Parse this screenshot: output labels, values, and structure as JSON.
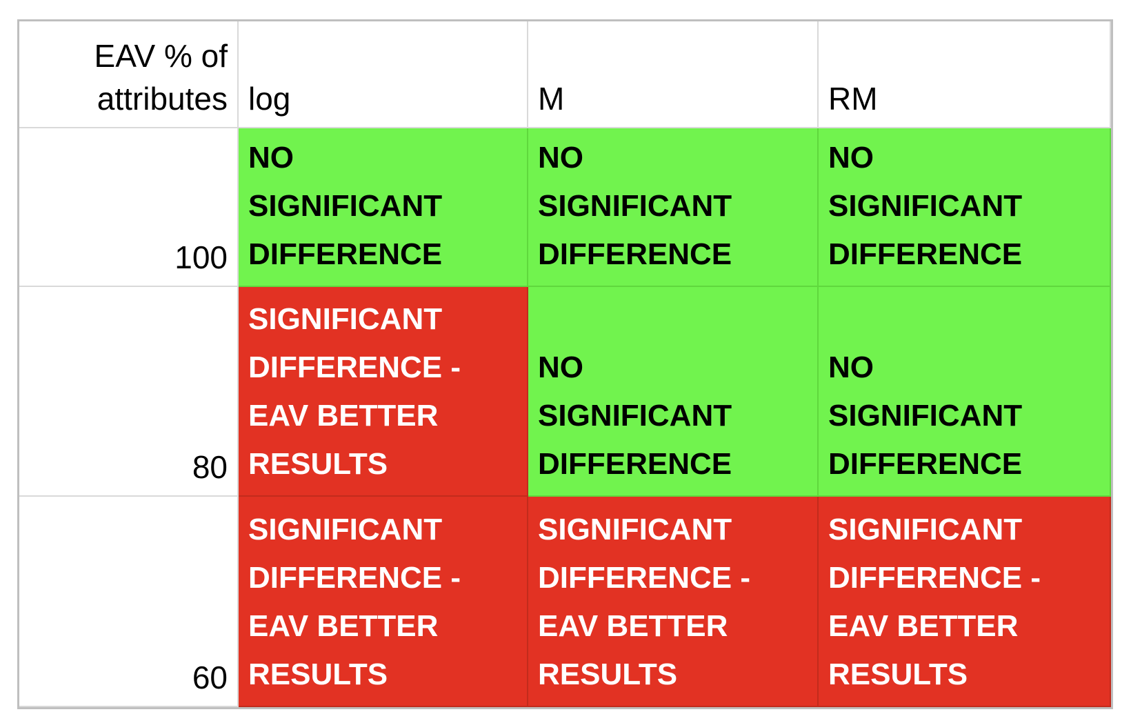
{
  "colors": {
    "no_significant_difference_green": "#71F34E",
    "significant_difference_red": "#E23223",
    "green_cell_border": "#5FD83D",
    "red_cell_border": "#C22B1C",
    "white_cell_gridline": "#D9D9D9",
    "table_outer_border": "#BFBFBF",
    "dark_text": "#000000",
    "light_text": "#FFFFFF"
  },
  "table": {
    "corner_header": "EAV % of\nattributes",
    "column_headers": [
      "log",
      "M",
      "RM"
    ],
    "rows": [
      {
        "label": "100",
        "cells": [
          {
            "status": "green",
            "text": "NO\nSIGNIFICANT\nDIFFERENCE"
          },
          {
            "status": "green",
            "text": "NO\nSIGNIFICANT\nDIFFERENCE"
          },
          {
            "status": "green",
            "text": "NO\nSIGNIFICANT\nDIFFERENCE"
          }
        ]
      },
      {
        "label": "80",
        "cells": [
          {
            "status": "red",
            "text": "SIGNIFICANT\nDIFFERENCE -\nEAV BETTER\nRESULTS"
          },
          {
            "status": "green",
            "text": "NO\nSIGNIFICANT\nDIFFERENCE"
          },
          {
            "status": "green",
            "text": "NO\nSIGNIFICANT\nDIFFERENCE"
          }
        ]
      },
      {
        "label": "60",
        "cells": [
          {
            "status": "red",
            "text": "SIGNIFICANT\nDIFFERENCE -\nEAV BETTER\nRESULTS"
          },
          {
            "status": "red",
            "text": "SIGNIFICANT\nDIFFERENCE -\nEAV BETTER\nRESULTS"
          },
          {
            "status": "red",
            "text": "SIGNIFICANT\nDIFFERENCE -\nEAV BETTER\nRESULTS"
          }
        ]
      }
    ]
  },
  "chart_data": {
    "type": "table",
    "title": "",
    "row_axis_label": "EAV % of attributes",
    "columns": [
      "log",
      "M",
      "RM"
    ],
    "rows": [
      "100",
      "80",
      "60"
    ],
    "cells": [
      [
        "NO SIGNIFICANT DIFFERENCE",
        "NO SIGNIFICANT DIFFERENCE",
        "NO SIGNIFICANT DIFFERENCE"
      ],
      [
        "SIGNIFICANT DIFFERENCE - EAV BETTER RESULTS",
        "NO SIGNIFICANT DIFFERENCE",
        "NO SIGNIFICANT DIFFERENCE"
      ],
      [
        "SIGNIFICANT DIFFERENCE - EAV BETTER RESULTS",
        "SIGNIFICANT DIFFERENCE - EAV BETTER RESULTS",
        "SIGNIFICANT DIFFERENCE - EAV BETTER RESULTS"
      ]
    ],
    "cell_status": [
      [
        "green",
        "green",
        "green"
      ],
      [
        "red",
        "green",
        "green"
      ],
      [
        "red",
        "red",
        "red"
      ]
    ],
    "legend": {
      "green": "NO SIGNIFICANT DIFFERENCE",
      "red": "SIGNIFICANT DIFFERENCE - EAV BETTER RESULTS"
    }
  }
}
